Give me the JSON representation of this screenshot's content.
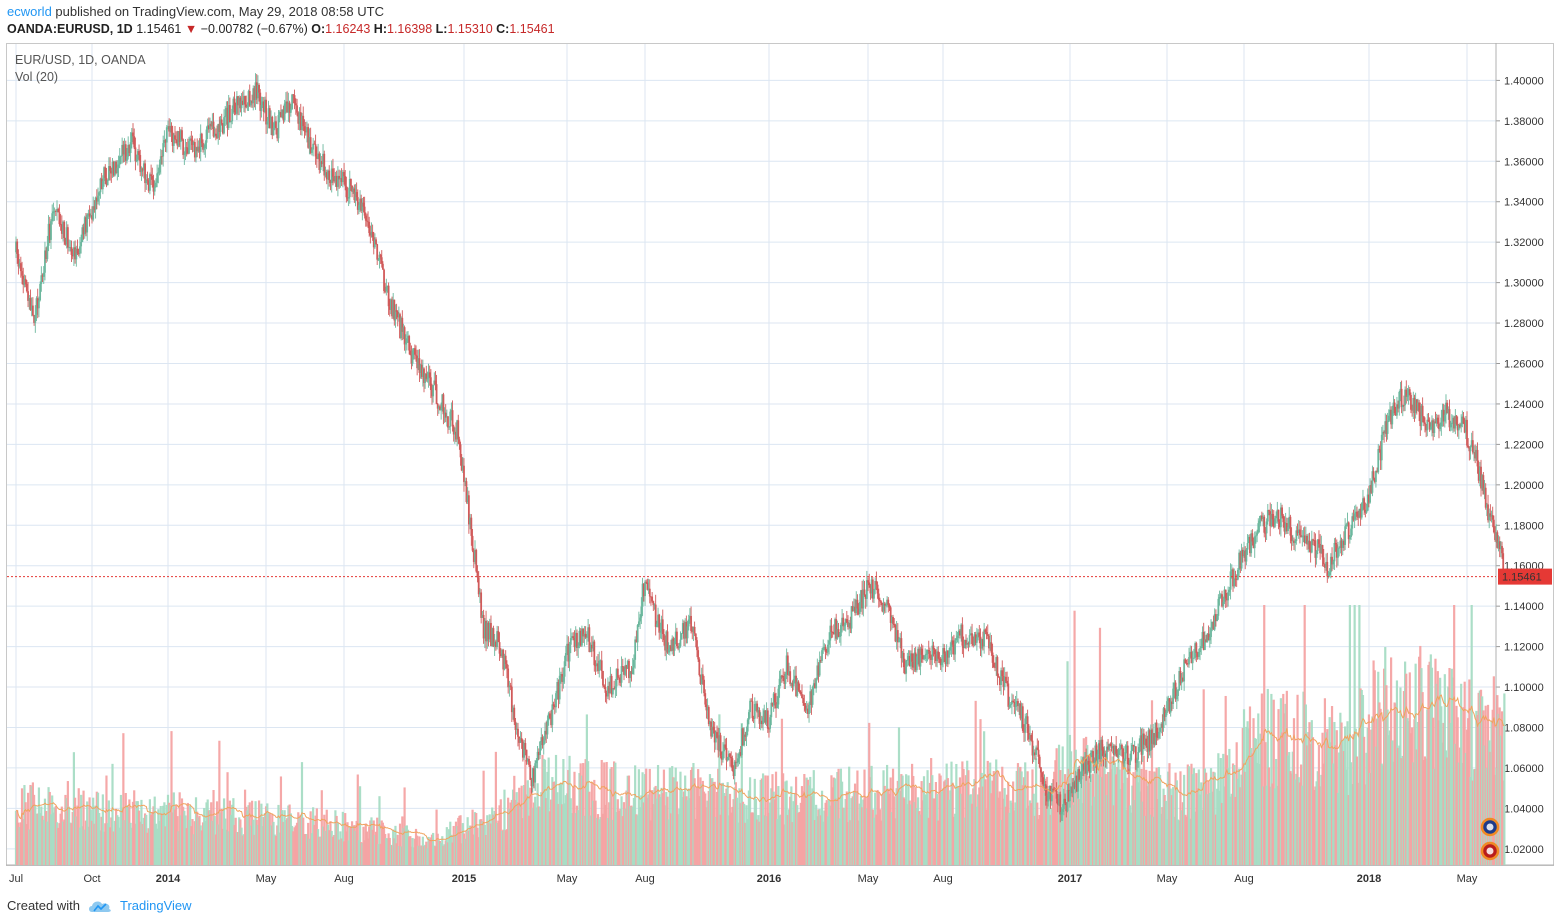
{
  "header": {
    "author": "ecworld",
    "published_text": "published on TradingView.com, May 29, 2018 08:58 UTC",
    "symbol": "OANDA:EURUSD, 1D",
    "last": "1.15461",
    "change_arrow": "▼",
    "change": "−0.00782 (−0.67%)",
    "open_label": "O:",
    "open": "1.16243",
    "high_label": "H:",
    "high": "1.16398",
    "low_label": "L:",
    "low": "1.15310",
    "close_label": "C:",
    "close": "1.15461"
  },
  "legend": {
    "series": "EUR/USD, 1D, OANDA",
    "indicator": "Vol (20)"
  },
  "footer": {
    "created_with": "Created with",
    "brand": "TradingView",
    "logo_icon": "tradingview-cloud-logo-icon"
  },
  "colors": {
    "up": "#6bb79d",
    "down": "#d15a5a",
    "vol_up": "#a7dcc4",
    "vol_down": "#f4a3a3",
    "vol_ma": "#f0a35e",
    "grid": "#dce6f2",
    "last_price": "#e53935"
  },
  "chart_data": {
    "type": "candlestick",
    "symbol": "EUR/USD",
    "interval": "1D",
    "x": [
      "Jul",
      "Oct",
      "2014",
      "May",
      "Aug",
      "2015",
      "May",
      "Aug",
      "2016",
      "May",
      "Aug",
      "2017",
      "May",
      "Aug",
      "2018",
      "May"
    ],
    "x_bold": [
      "2014",
      "2015",
      "2016",
      "2017",
      "2018"
    ],
    "y_ticks": [
      "1.40000",
      "1.38000",
      "1.36000",
      "1.34000",
      "1.32000",
      "1.30000",
      "1.28000",
      "1.26000",
      "1.24000",
      "1.22000",
      "1.20000",
      "1.18000",
      "1.16000",
      "1.14000",
      "1.12000",
      "1.10000",
      "1.08000",
      "1.06000",
      "1.04000",
      "1.02000"
    ],
    "ylim": [
      1.012,
      1.418
    ],
    "price_path": [
      [
        2013.5,
        1.315
      ],
      [
        2013.56,
        1.28
      ],
      [
        2013.62,
        1.335
      ],
      [
        2013.7,
        1.315
      ],
      [
        2013.78,
        1.35
      ],
      [
        2013.88,
        1.37
      ],
      [
        2013.95,
        1.345
      ],
      [
        2014.0,
        1.375
      ],
      [
        2014.08,
        1.365
      ],
      [
        2014.16,
        1.375
      ],
      [
        2014.22,
        1.385
      ],
      [
        2014.3,
        1.395
      ],
      [
        2014.36,
        1.375
      ],
      [
        2014.42,
        1.39
      ],
      [
        2014.5,
        1.36
      ],
      [
        2014.58,
        1.35
      ],
      [
        2014.66,
        1.335
      ],
      [
        2014.74,
        1.29
      ],
      [
        2014.82,
        1.265
      ],
      [
        2014.9,
        1.245
      ],
      [
        2014.98,
        1.225
      ],
      [
        2015.03,
        1.17
      ],
      [
        2015.06,
        1.13
      ],
      [
        2015.12,
        1.12
      ],
      [
        2015.17,
        1.08
      ],
      [
        2015.22,
        1.055
      ],
      [
        2015.28,
        1.085
      ],
      [
        2015.34,
        1.12
      ],
      [
        2015.4,
        1.125
      ],
      [
        2015.46,
        1.1
      ],
      [
        2015.54,
        1.11
      ],
      [
        2015.58,
        1.15
      ],
      [
        2015.66,
        1.12
      ],
      [
        2015.74,
        1.13
      ],
      [
        2015.8,
        1.08
      ],
      [
        2015.88,
        1.06
      ],
      [
        2015.94,
        1.09
      ],
      [
        2016.0,
        1.085
      ],
      [
        2016.06,
        1.11
      ],
      [
        2016.13,
        1.09
      ],
      [
        2016.2,
        1.125
      ],
      [
        2016.28,
        1.135
      ],
      [
        2016.34,
        1.15
      ],
      [
        2016.4,
        1.14
      ],
      [
        2016.46,
        1.11
      ],
      [
        2016.52,
        1.115
      ],
      [
        2016.58,
        1.115
      ],
      [
        2016.64,
        1.125
      ],
      [
        2016.72,
        1.125
      ],
      [
        2016.8,
        1.095
      ],
      [
        2016.86,
        1.08
      ],
      [
        2016.92,
        1.05
      ],
      [
        2016.98,
        1.04
      ],
      [
        2017.05,
        1.06
      ],
      [
        2017.12,
        1.07
      ],
      [
        2017.2,
        1.065
      ],
      [
        2017.28,
        1.075
      ],
      [
        2017.34,
        1.09
      ],
      [
        2017.4,
        1.115
      ],
      [
        2017.46,
        1.125
      ],
      [
        2017.52,
        1.145
      ],
      [
        2017.58,
        1.165
      ],
      [
        2017.64,
        1.18
      ],
      [
        2017.7,
        1.185
      ],
      [
        2017.76,
        1.175
      ],
      [
        2017.82,
        1.17
      ],
      [
        2017.86,
        1.16
      ],
      [
        2017.92,
        1.175
      ],
      [
        2018.0,
        1.195
      ],
      [
        2018.06,
        1.23
      ],
      [
        2018.12,
        1.245
      ],
      [
        2018.2,
        1.23
      ],
      [
        2018.26,
        1.235
      ],
      [
        2018.32,
        1.23
      ],
      [
        2018.36,
        1.215
      ],
      [
        2018.4,
        1.19
      ],
      [
        2018.44,
        1.17
      ],
      [
        2018.46,
        1.155
      ]
    ],
    "volume_levels": [
      [
        2013.5,
        0.25
      ],
      [
        2014.0,
        0.22
      ],
      [
        2014.5,
        0.18
      ],
      [
        2014.9,
        0.1
      ],
      [
        2015.15,
        0.24
      ],
      [
        2015.2,
        0.34
      ],
      [
        2015.6,
        0.3
      ],
      [
        2016.0,
        0.28
      ],
      [
        2016.4,
        0.3
      ],
      [
        2016.9,
        0.32
      ],
      [
        2017.0,
        0.4
      ],
      [
        2017.4,
        0.3
      ],
      [
        2017.55,
        0.35
      ],
      [
        2017.6,
        0.55
      ],
      [
        2017.95,
        0.48
      ],
      [
        2018.05,
        0.68
      ],
      [
        2018.3,
        0.6
      ],
      [
        2018.45,
        0.55
      ]
    ],
    "last_price": 1.15461,
    "last_price_label": "1.15461",
    "volume_ma_period": 20,
    "grid": true,
    "legend": "top-left"
  }
}
